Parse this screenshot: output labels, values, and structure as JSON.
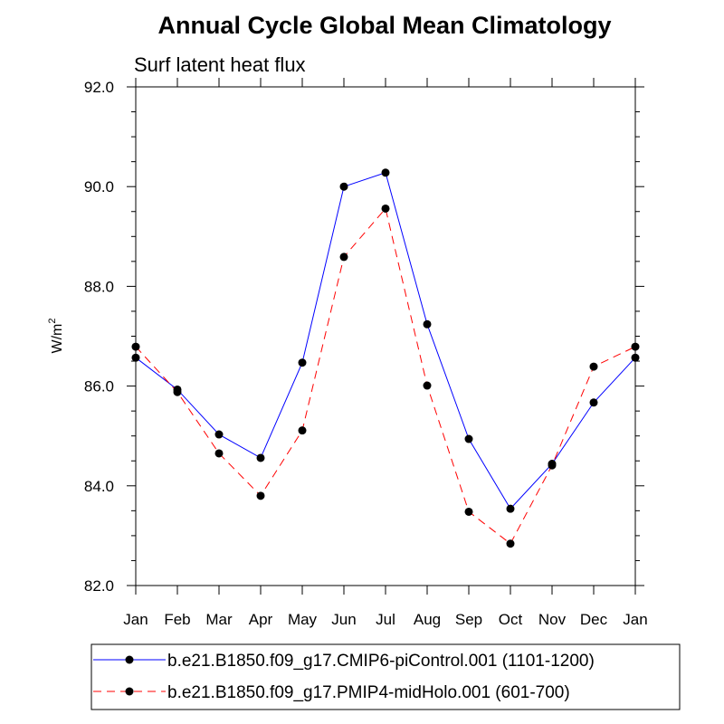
{
  "chart_data": {
    "type": "line",
    "title": "Annual Cycle Global Mean Climatology",
    "subtitle": "Surf latent heat flux",
    "xlabel": "",
    "ylabel": "W/m",
    "ylabel_superscript": "2",
    "ylim": [
      82.0,
      92.0
    ],
    "yticks": [
      "82.0",
      "84.0",
      "86.0",
      "88.0",
      "90.0",
      "92.0"
    ],
    "categories": [
      "Jan",
      "Feb",
      "Mar",
      "Apr",
      "May",
      "Jun",
      "Jul",
      "Aug",
      "Sep",
      "Oct",
      "Nov",
      "Dec",
      "Jan"
    ],
    "grid": false,
    "legend_position": "bottom",
    "series": [
      {
        "name": "b.e21.B1850.f09_g17.CMIP6-piControl.001 (1101-1200)",
        "color": "#0000ff",
        "line_style": "solid",
        "values": [
          86.57,
          85.93,
          85.03,
          84.56,
          86.47,
          90.0,
          90.28,
          87.24,
          84.94,
          83.54,
          84.44,
          85.67,
          86.57
        ]
      },
      {
        "name": "b.e21.B1850.f09_g17.PMIP4-midHolo.001 (601-700)",
        "color": "#ff0000",
        "line_style": "dashed",
        "values": [
          86.79,
          85.88,
          84.65,
          83.8,
          85.11,
          88.59,
          89.56,
          86.01,
          83.48,
          82.84,
          84.41,
          86.39,
          86.79
        ]
      }
    ]
  }
}
